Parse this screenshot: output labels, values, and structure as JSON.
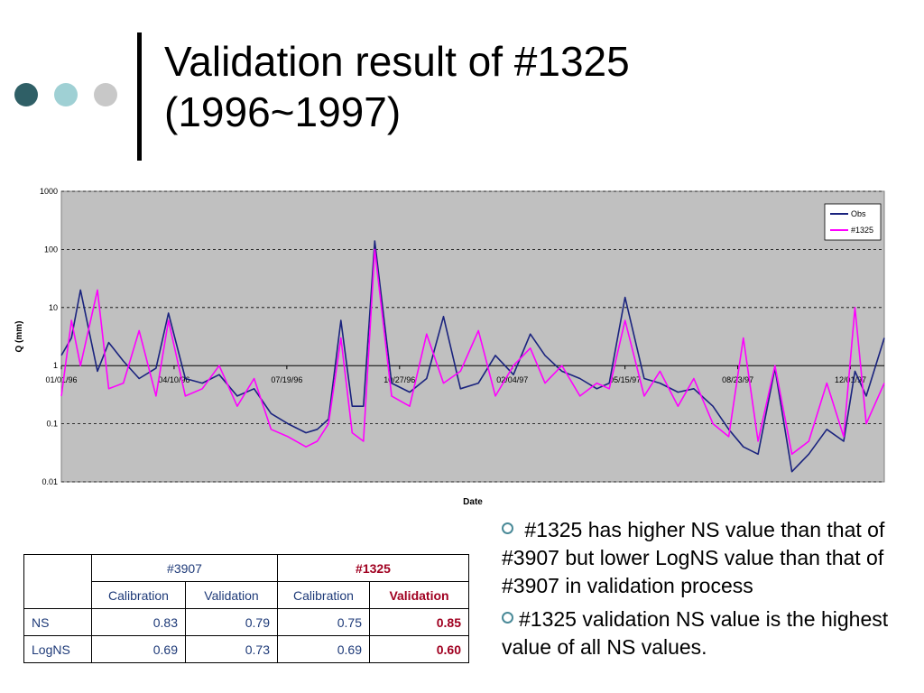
{
  "slide": {
    "title_line1": "Validation result of #1325",
    "title_line2": "(1996~1997)",
    "dot_colors": [
      "#2f5f66",
      "#9fd0d4",
      "#c8c8c8"
    ]
  },
  "chart_data": {
    "type": "line",
    "xlabel": "Date",
    "ylabel": "Q (mm)",
    "yscale": "log",
    "ylim": [
      0.01,
      1000
    ],
    "ytick_labels": [
      "1000",
      "100",
      "10",
      "1",
      "0.1",
      "0.01"
    ],
    "xtick_labels": [
      "01/01/96",
      "04/10/96",
      "07/19/96",
      "10/27/96",
      "02/04/97",
      "05/15/97",
      "08/23/97",
      "12/01/97"
    ],
    "xtick_dates": [
      "1996-01-01",
      "1996-04-10",
      "1996-07-19",
      "1996-10-27",
      "1997-02-04",
      "1997-05-15",
      "1997-08-23",
      "1997-12-01"
    ],
    "x_range": [
      "1996-01-01",
      "1997-12-31"
    ],
    "grid": "horizontal dashed",
    "plot_background": "#c0c0c0",
    "legend_position": "top-right",
    "series": [
      {
        "name": "Obs",
        "color": "#1a237e",
        "x": [
          "1996-01-01",
          "1996-01-10",
          "1996-01-18",
          "1996-02-02",
          "1996-02-12",
          "1996-02-25",
          "1996-03-10",
          "1996-03-25",
          "1996-04-05",
          "1996-04-20",
          "1996-05-05",
          "1996-05-20",
          "1996-06-05",
          "1996-06-20",
          "1996-07-05",
          "1996-07-20",
          "1996-08-05",
          "1996-08-15",
          "1996-08-25",
          "1996-09-05",
          "1996-09-15",
          "1996-09-25",
          "1996-10-05",
          "1996-10-20",
          "1996-11-05",
          "1996-11-20",
          "1996-12-05",
          "1996-12-20",
          "1997-01-05",
          "1997-01-20",
          "1997-02-05",
          "1997-02-20",
          "1997-03-05",
          "1997-03-20",
          "1997-04-05",
          "1997-04-20",
          "1997-05-01",
          "1997-05-15",
          "1997-06-01",
          "1997-06-15",
          "1997-07-01",
          "1997-07-15",
          "1997-08-01",
          "1997-08-15",
          "1997-08-28",
          "1997-09-10",
          "1997-09-25",
          "1997-10-10",
          "1997-10-25",
          "1997-11-10",
          "1997-11-25",
          "1997-12-05",
          "1997-12-15",
          "1997-12-31"
        ],
        "y": [
          1.5,
          3.0,
          20,
          0.8,
          2.5,
          1.2,
          0.6,
          0.9,
          8.0,
          0.6,
          0.5,
          0.7,
          0.3,
          0.4,
          0.15,
          0.1,
          0.07,
          0.08,
          0.12,
          6.0,
          0.2,
          0.2,
          140,
          0.5,
          0.35,
          0.6,
          7.0,
          0.4,
          0.5,
          1.5,
          0.7,
          3.5,
          1.5,
          0.8,
          0.6,
          0.4,
          0.5,
          15,
          0.6,
          0.5,
          0.35,
          0.4,
          0.2,
          0.08,
          0.04,
          0.03,
          0.9,
          0.015,
          0.03,
          0.08,
          0.05,
          0.8,
          0.3,
          3.0
        ]
      },
      {
        "name": "#1325",
        "color": "#ff00ff",
        "x": [
          "1996-01-01",
          "1996-01-10",
          "1996-01-18",
          "1996-02-02",
          "1996-02-12",
          "1996-02-25",
          "1996-03-10",
          "1996-03-25",
          "1996-04-05",
          "1996-04-20",
          "1996-05-05",
          "1996-05-20",
          "1996-06-05",
          "1996-06-20",
          "1996-07-05",
          "1996-07-20",
          "1996-08-05",
          "1996-08-15",
          "1996-08-25",
          "1996-09-05",
          "1996-09-15",
          "1996-09-25",
          "1996-10-05",
          "1996-10-20",
          "1996-11-05",
          "1996-11-20",
          "1996-12-05",
          "1996-12-20",
          "1997-01-05",
          "1997-01-20",
          "1997-02-05",
          "1997-02-20",
          "1997-03-05",
          "1997-03-20",
          "1997-04-05",
          "1997-04-20",
          "1997-05-01",
          "1997-05-15",
          "1997-06-01",
          "1997-06-15",
          "1997-07-01",
          "1997-07-15",
          "1997-08-01",
          "1997-08-15",
          "1997-08-28",
          "1997-09-10",
          "1997-09-25",
          "1997-10-10",
          "1997-10-25",
          "1997-11-10",
          "1997-11-25",
          "1997-12-05",
          "1997-12-15",
          "1997-12-31"
        ],
        "y": [
          0.3,
          6.0,
          1.0,
          20,
          0.4,
          0.5,
          4.0,
          0.3,
          6.0,
          0.3,
          0.4,
          1.0,
          0.2,
          0.6,
          0.08,
          0.06,
          0.04,
          0.05,
          0.1,
          3.0,
          0.07,
          0.05,
          100,
          0.3,
          0.2,
          3.5,
          0.5,
          0.8,
          4.0,
          0.3,
          1.0,
          2.0,
          0.5,
          1.0,
          0.3,
          0.5,
          0.4,
          6.0,
          0.3,
          0.8,
          0.2,
          0.6,
          0.1,
          0.06,
          3.0,
          0.05,
          1.0,
          0.03,
          0.05,
          0.5,
          0.06,
          10,
          0.1,
          0.5
        ]
      }
    ]
  },
  "table": {
    "group_headers": [
      "#3907",
      "#1325"
    ],
    "sub_headers": [
      "Calibration",
      "Validation",
      "Calibration",
      "Validation"
    ],
    "rows": [
      {
        "label": "NS",
        "values": [
          "0.83",
          "0.79",
          "0.75",
          "0.85"
        ]
      },
      {
        "label": "LogNS",
        "values": [
          "0.69",
          "0.73",
          "0.69",
          "0.60"
        ]
      }
    ]
  },
  "bullets": [
    " #1325 has higher NS value than that of #3907 but lower LogNS value than that of #3907 in validation process",
    "#1325 validation NS value is the highest value of all NS values."
  ]
}
